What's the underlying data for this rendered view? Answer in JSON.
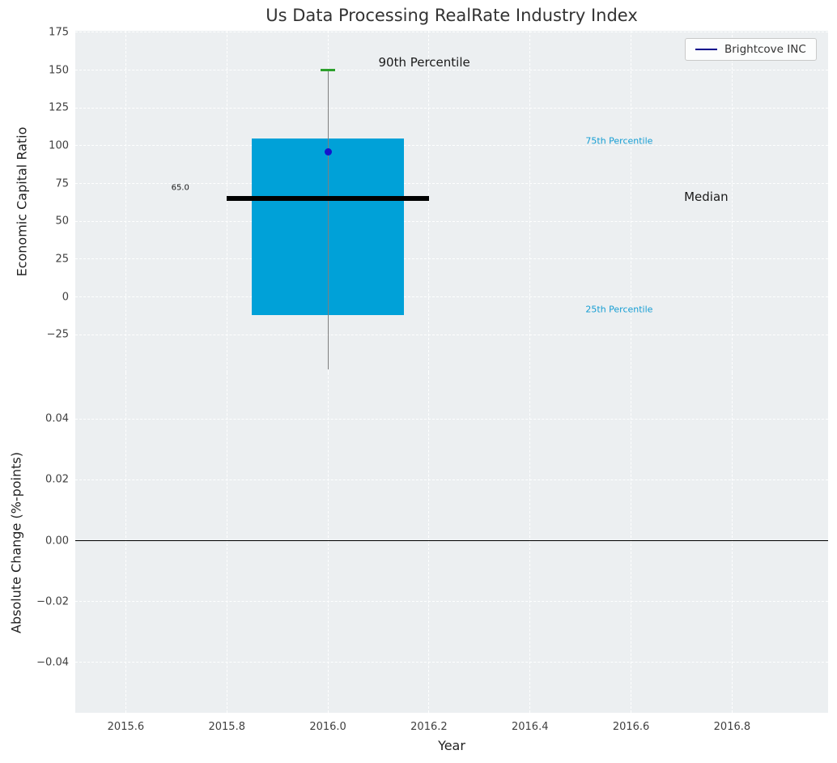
{
  "title": "Us Data Processing RealRate Industry Index",
  "chart_data": [
    {
      "type": "box",
      "title": "Us Data Processing RealRate Industry Index",
      "ylabel": "Economic Capital Ratio",
      "xlim": [
        2015.5,
        2016.99
      ],
      "ylim": [
        -50,
        176
      ],
      "yticks": [
        175,
        150,
        125,
        100,
        75,
        50,
        25,
        0,
        -25
      ],
      "ytick_labels": [
        "175",
        "150",
        "125",
        "100",
        "75",
        "50",
        "25",
        "0",
        "−25"
      ],
      "xticks": [
        2015.6,
        2015.8,
        2016.0,
        2016.2,
        2016.4,
        2016.6,
        2016.8
      ],
      "grid": true,
      "background": "#eceff1",
      "grid_color": "rgba(255,255,255,0.95)",
      "box": {
        "x_center": 2016.0,
        "x_left": 2015.85,
        "x_right": 2016.15,
        "q1": -12,
        "q3": 105,
        "median": 65,
        "p90": 150,
        "whisker_low": -48,
        "fill_color": "#00a1d8",
        "median_color": "#000000",
        "median_x_left": 2015.8,
        "median_x_right": 2016.2,
        "whisker_color": "#7f7f7f",
        "cap_color": "#2ca02c"
      },
      "point": {
        "x": 2016.0,
        "y": 96,
        "color": "#1414cd",
        "name": "Brightcove INC"
      },
      "legend": {
        "label": "Brightcove INC",
        "line_color": "#00008b",
        "position": "upper right"
      },
      "annotations": [
        {
          "text": "90th Percentile",
          "x": 2016.1,
          "y": 155,
          "color": "#1a1a1a",
          "size": 15
        },
        {
          "text": "75th Percentile",
          "x": 2016.51,
          "y": 103,
          "color": "#149dd3",
          "size": 11
        },
        {
          "text": "Median",
          "x": 2016.705,
          "y": 66,
          "color": "#1a1a1a",
          "size": 15
        },
        {
          "text": "25th Percentile",
          "x": 2016.51,
          "y": -8,
          "color": "#149dd3",
          "size": 11
        },
        {
          "text": "65.0",
          "x": 2015.69,
          "y": 72,
          "color": "#1a1a1a",
          "size": 10
        }
      ]
    },
    {
      "type": "line",
      "ylabel": "Absolute Change (%-points)",
      "xlabel": "Year",
      "xlim": [
        2015.5,
        2016.99
      ],
      "ylim": [
        -0.0565,
        0.0552
      ],
      "yticks": [
        0.04,
        0.02,
        0.0,
        -0.02,
        -0.04
      ],
      "ytick_labels": [
        "0.04",
        "0.02",
        "0.00",
        "−0.02",
        "−0.04"
      ],
      "xticks": [
        2015.6,
        2015.8,
        2016.0,
        2016.2,
        2016.4,
        2016.6,
        2016.8
      ],
      "xtick_labels": [
        "2015.6",
        "2015.8",
        "2016.0",
        "2016.2",
        "2016.4",
        "2016.6",
        "2016.8"
      ],
      "grid": true,
      "background": "#eceff1",
      "grid_color": "rgba(255,255,255,0.95)",
      "zero_line": {
        "y": 0.0,
        "color": "#000000"
      },
      "series": []
    }
  ]
}
